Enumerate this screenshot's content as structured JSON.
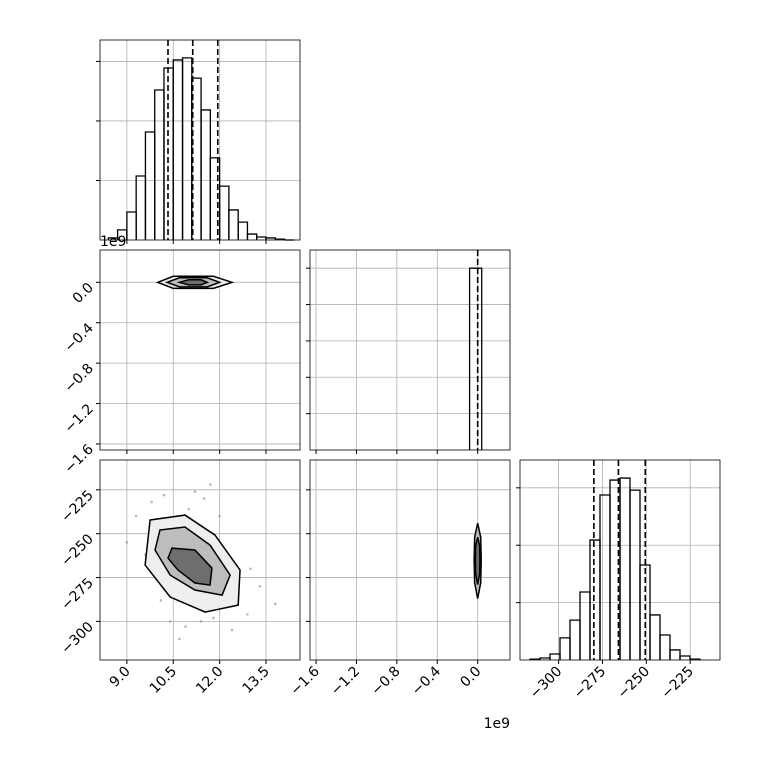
{
  "chart_data": [
    {
      "type": "histogram",
      "color": "#000000",
      "grid": true,
      "bins": [
        8.4,
        8.7,
        9.0,
        9.3,
        9.6,
        9.9,
        10.2,
        10.5,
        10.8,
        11.1,
        11.4,
        11.7,
        12.0,
        12.3,
        12.6,
        12.9,
        13.2,
        13.5,
        13.8,
        14.1,
        14.4
      ],
      "counts": [
        7,
        34,
        94,
        215,
        363,
        504,
        578,
        605,
        612,
        544,
        437,
        276,
        181,
        101,
        60,
        20,
        10,
        7,
        3,
        0
      ],
      "quantiles": [
        10.33,
        11.13,
        11.94
      ],
      "xlim": [
        8.13,
        14.6
      ],
      "xticks": [
        9,
        10.5,
        12,
        13.5
      ],
      "ylim": [
        0,
        672
      ],
      "yticks": [
        200,
        400,
        600
      ]
    },
    {
      "type": "contour",
      "color": "#000000",
      "grid": true,
      "offset_text": "1e9",
      "contours": [
        {
          "x": [
            10.0,
            10.5,
            11.8,
            12.4,
            11.8,
            10.5
          ],
          "y": [
            0,
            0.06,
            0.06,
            0,
            -0.06,
            -0.06
          ]
        },
        {
          "x": [
            10.3,
            10.7,
            11.6,
            12.0,
            11.6,
            10.7
          ],
          "y": [
            0,
            0.045,
            0.045,
            0,
            -0.045,
            -0.045
          ]
        },
        {
          "x": [
            10.7,
            11.0,
            11.4,
            11.6,
            11.4,
            11.0
          ],
          "y": [
            0,
            0.025,
            0.025,
            0,
            -0.025,
            -0.025
          ]
        }
      ],
      "xlim": [
        8.13,
        14.6
      ],
      "xticks": [
        9,
        10.5,
        12,
        13.5
      ],
      "ylim": [
        -1.66,
        0.32
      ],
      "yticks": [
        {
          "value": 0,
          "label": "0.0"
        },
        {
          "value": -0.4,
          "label": "−0.4"
        },
        {
          "value": -0.8,
          "label": "−0.8"
        },
        {
          "value": -1.2,
          "label": "−1.2"
        },
        {
          "value": -1.6,
          "label": "−1.6"
        }
      ]
    },
    {
      "type": "histogram",
      "color": "#000000",
      "grid": true,
      "bins": [
        -0.08,
        0.04
      ],
      "counts": [
        10000
      ],
      "quantiles": [
        0.0
      ],
      "xlim": [
        -1.66,
        0.32
      ],
      "xticks": [
        -1.6,
        -1.2,
        -0.8,
        -0.4,
        0
      ],
      "ylim": [
        0,
        11000
      ],
      "yticks": [
        2000,
        4000,
        6000,
        8000,
        10000
      ]
    },
    {
      "type": "contour",
      "color": "#000000",
      "grid": true,
      "points": {
        "x": [
          9.3,
          9.8,
          10.2,
          10.6,
          11.0,
          11.4,
          11.8,
          12.2,
          12.6,
          13.0,
          9.6,
          10.1,
          10.9,
          11.5,
          12.4,
          13.3,
          9.0,
          10.4,
          11.2,
          12.0,
          12.9,
          13.8,
          10.7,
          11.7
        ],
        "y": [
          -240,
          -232,
          -228,
          -245,
          -236,
          -300,
          -298,
          -292,
          -285,
          -270,
          -262,
          -288,
          -303,
          -230,
          -305,
          -280,
          -255,
          -300,
          -226,
          -240,
          -296,
          -290,
          -310,
          -222
        ]
      },
      "contours": [
        {
          "x": [
            9.75,
            10.88,
            11.85,
            12.66,
            12.6,
            11.53,
            10.4,
            9.59
          ],
          "y": [
            -242.2,
            -239.4,
            -250.8,
            -270.7,
            -290.7,
            -294.7,
            -286.1,
            -267.9
          ]
        },
        {
          "x": [
            10.07,
            10.88,
            11.69,
            12.34,
            12.08,
            11.2,
            10.4,
            9.91
          ],
          "y": [
            -247.9,
            -246.2,
            -256.5,
            -273.6,
            -285.0,
            -282.1,
            -273.6,
            -259.3
          ]
        },
        {
          "x": [
            10.46,
            11.2,
            11.75,
            11.69,
            11.2,
            10.65,
            10.33
          ],
          "y": [
            -258.2,
            -259.3,
            -269.6,
            -279.3,
            -278.1,
            -270.7,
            -263.9
          ]
        }
      ],
      "xlim": [
        8.13,
        14.6
      ],
      "xticks": [
        {
          "value": 9,
          "label": "9.0"
        },
        {
          "value": 10.5,
          "label": "10.5"
        },
        {
          "value": 12,
          "label": "12.0"
        },
        {
          "value": 13.5,
          "label": "13.5"
        }
      ],
      "ylim": [
        -322,
        -208
      ],
      "yticks": [
        {
          "value": -225,
          "label": "−225"
        },
        {
          "value": -250,
          "label": "−250"
        },
        {
          "value": -275,
          "label": "−275"
        },
        {
          "value": -300,
          "label": "−300"
        }
      ]
    },
    {
      "type": "contour",
      "color": "#000000",
      "grid": true,
      "offset_text": "1e9",
      "contours": [
        {
          "x": [
            0,
            0.03,
            0.035,
            0.03,
            0,
            -0.03,
            -0.035,
            -0.03
          ],
          "y": [
            -244,
            -252,
            -265,
            -278,
            -287,
            -278,
            -265,
            -252
          ]
        },
        {
          "x": [
            0,
            0.02,
            0.022,
            0.02,
            0,
            -0.02,
            -0.022,
            -0.02
          ],
          "y": [
            -252,
            -257,
            -265,
            -273,
            -279,
            -273,
            -265,
            -257
          ]
        }
      ],
      "xlim": [
        -1.66,
        0.32
      ],
      "xticks": [
        {
          "value": -1.6,
          "label": "−1.6"
        },
        {
          "value": -1.2,
          "label": "−1.2"
        },
        {
          "value": -0.8,
          "label": "−0.8"
        },
        {
          "value": -0.4,
          "label": "−0.4"
        },
        {
          "value": 0,
          "label": "0.0"
        }
      ],
      "ylim": [
        -322,
        -208
      ],
      "yticks": [
        -225,
        -250,
        -275,
        -300
      ]
    },
    {
      "type": "histogram",
      "color": "#000000",
      "grid": true,
      "bins": [
        -316.3,
        -310.6,
        -304.9,
        -299.2,
        -293.5,
        -287.8,
        -282.1,
        -276.4,
        -270.7,
        -265.0,
        -259.3,
        -253.6,
        -247.9,
        -242.2,
        -236.5,
        -230.8,
        -225.1,
        -219.4
      ],
      "counts": [
        3,
        7,
        21,
        77,
        139,
        237,
        418,
        575,
        627,
        634,
        592,
        331,
        157,
        87,
        35,
        14,
        3
      ],
      "quantiles": [
        -279.9,
        -265.9,
        -250.6
      ],
      "xlim": [
        -322,
        -208
      ],
      "xticks": [
        {
          "value": -300,
          "label": "−300"
        },
        {
          "value": -275,
          "label": "−275"
        },
        {
          "value": -250,
          "label": "−250"
        },
        {
          "value": -225,
          "label": "−225"
        }
      ],
      "ylim": [
        0,
        697
      ],
      "yticks": [
        200,
        400,
        600
      ]
    }
  ]
}
